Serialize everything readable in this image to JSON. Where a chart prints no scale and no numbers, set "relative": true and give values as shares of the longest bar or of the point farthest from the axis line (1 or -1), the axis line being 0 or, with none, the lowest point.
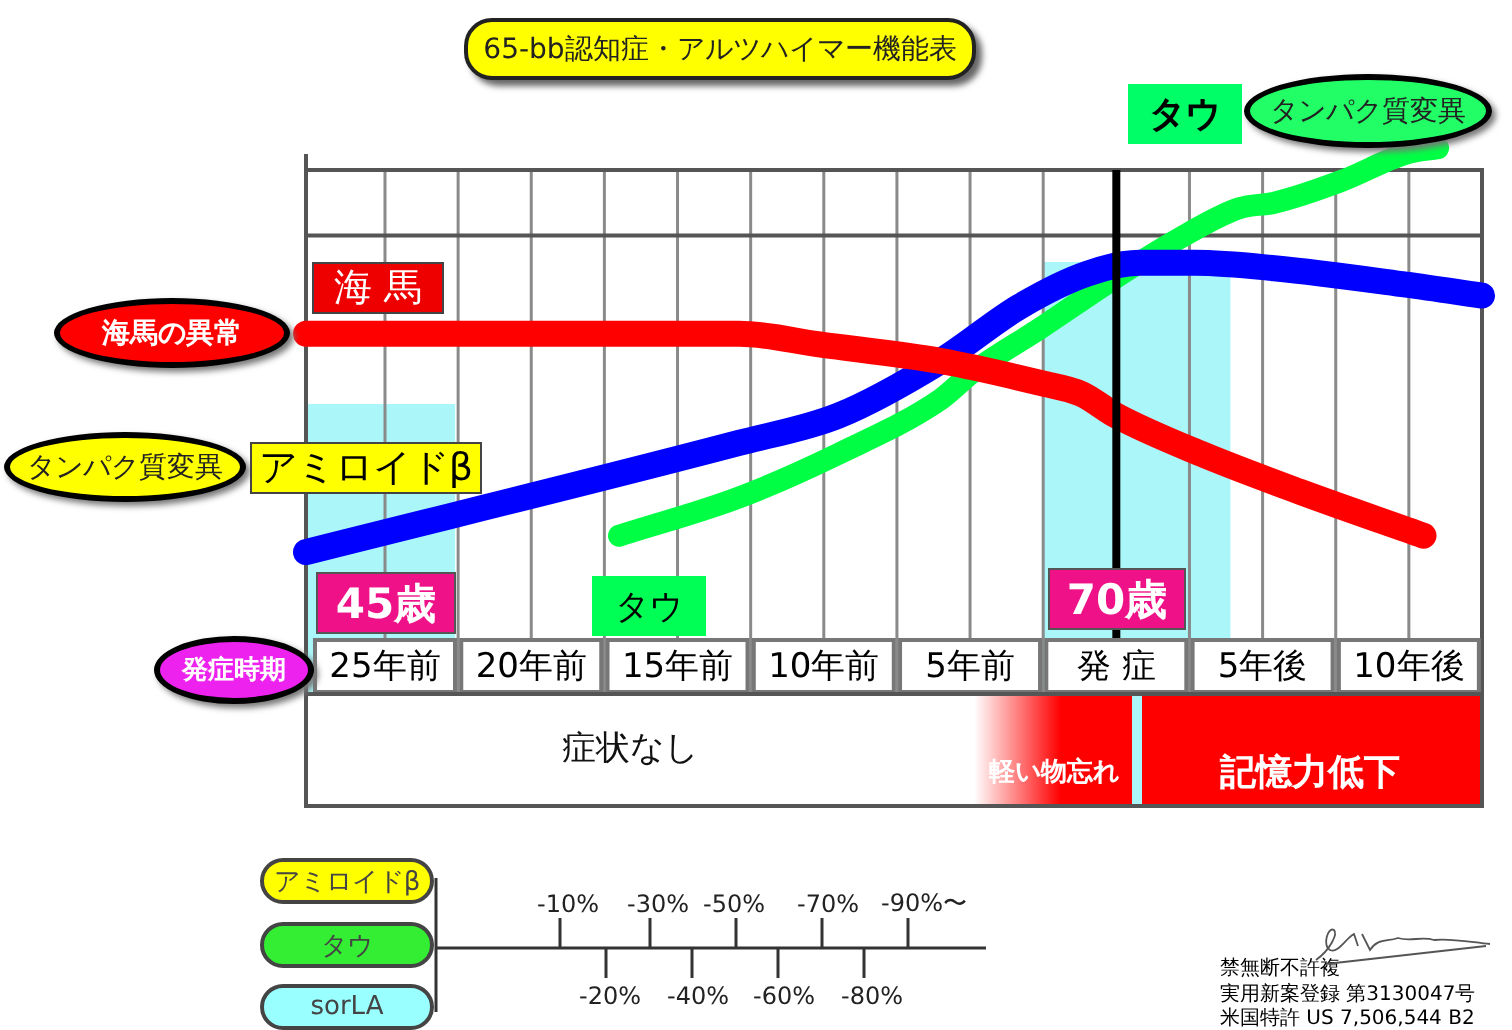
{
  "chart_data": {
    "type": "line",
    "title": "65-bb認知症・アルツハイマー機能表",
    "relative": true,
    "xlim": [
      -27.7,
      12.5
    ],
    "xticks": [
      {
        "value": -25,
        "label": "25年前"
      },
      {
        "value": -22.5,
        "label": null
      },
      {
        "value": -20,
        "label": "20年前"
      },
      {
        "value": -17.5,
        "label": null
      },
      {
        "value": -15,
        "label": "15年前"
      },
      {
        "value": -12.5,
        "label": null
      },
      {
        "value": -10,
        "label": "10年前"
      },
      {
        "value": -7.5,
        "label": null
      },
      {
        "value": -5,
        "label": "5年前"
      },
      {
        "value": -2.5,
        "label": null
      },
      {
        "value": 0,
        "label": "発 症"
      },
      {
        "value": 2.5,
        "label": null
      },
      {
        "value": 5,
        "label": "5年後"
      },
      {
        "value": 7.5,
        "label": null
      },
      {
        "value": 10,
        "label": "10年後"
      }
    ],
    "series": [
      {
        "name": "海 馬",
        "color": "#ff0000",
        "x": [
          -27.7,
          -17.7,
          -12.9,
          -10.1,
          -6.0,
          -2.6,
          -1.2,
          0,
          2.9,
          6.3,
          10.5
        ],
        "values": [
          0.66,
          0.66,
          0.66,
          0.64,
          0.61,
          0.57,
          0.55,
          0.51,
          0.44,
          0.37,
          0.29
        ]
      },
      {
        "name": "アミロイドβ",
        "color": "#0000ff",
        "x": [
          -27.7,
          -12.9,
          -9.5,
          -6.0,
          -3.3,
          -1.0,
          0.8,
          2.7,
          5.4,
          9.9,
          12.5
        ],
        "values": [
          0.26,
          0.46,
          0.51,
          0.61,
          0.71,
          0.77,
          0.79,
          0.79,
          0.78,
          0.75,
          0.73
        ]
      },
      {
        "name": "タウ",
        "color": "#00ff44",
        "x": [
          -17.0,
          -12.9,
          -9.5,
          -6.0,
          -4.9,
          -2.6,
          -0.1,
          2.0,
          4.2,
          5.4,
          7.7,
          9.9,
          11.0
        ],
        "values": [
          0.29,
          0.36,
          0.44,
          0.54,
          0.59,
          0.67,
          0.76,
          0.83,
          0.89,
          0.9,
          0.94,
          0.99,
          1
        ]
      }
    ],
    "ref_lines": [
      {
        "axis": "x",
        "value": 0,
        "color": "#000000"
      },
      {
        "axis": "y",
        "value": 0.84,
        "color": "#555555"
      }
    ],
    "bands": [
      {
        "axis": "x",
        "from": -27.7,
        "to": -22.6,
        "color": "#aaf6f8"
      },
      {
        "axis": "x",
        "from": -2.5,
        "to": 3.9,
        "color": "#aaf6f8"
      }
    ],
    "annotations": [
      "海馬の異常",
      "タンパク質変異",
      "タウ",
      "タンパク質変異",
      "45歳",
      "70歳",
      "発症時期",
      "症状なし",
      "軽い物忘れ",
      "記憶力低下",
      "アミロイドβ",
      "タウ",
      "sorLA",
      "-10%",
      "-20%",
      "-30%",
      "-40%",
      "-50%",
      "-60%",
      "-70%",
      "-80%",
      "-90%〜",
      "禁無断不許複",
      "実用新案登録 第3130047号",
      "米国特許 US 7,506,544 B2"
    ],
    "grid": "x",
    "marker": "none",
    "line_style": "solid"
  }
}
